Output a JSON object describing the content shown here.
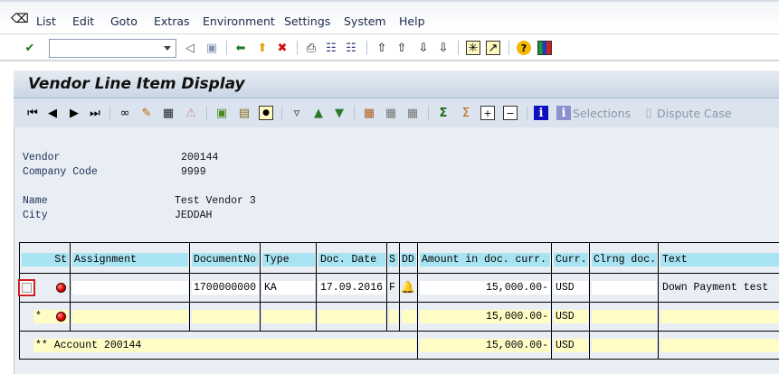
{
  "menu": [
    "List",
    "Edit",
    "Goto",
    "Extras",
    "Environment",
    "Settings",
    "System",
    "Help"
  ],
  "command_field": {
    "value": "",
    "placeholder": ""
  },
  "title": "Vendor Line Item Display",
  "app_toolbar": {
    "selections": "Selections",
    "dispute_case": "Dispute Case"
  },
  "header": {
    "vendor_label": "Vendor",
    "vendor": "200144",
    "company_code_label": "Company Code",
    "company_code": "9999",
    "name_label": "Name",
    "name": "Test Vendor 3",
    "city_label": "City",
    "city": "JEDDAH"
  },
  "table": {
    "columns": [
      "St",
      "Assignment",
      "DocumentNo",
      "Type",
      "Doc. Date",
      "S",
      "DD",
      "Amount in doc. curr.",
      "Curr.",
      "Clrng doc.",
      "Text"
    ],
    "rows": [
      {
        "assignment": "",
        "document_no": "1700000000",
        "type": "KA",
        "doc_date": "17.09.2016",
        "s": "F",
        "amount": "15,000.00-",
        "curr": "USD",
        "clrng_doc": "",
        "text": "Down Payment test",
        "status": "red"
      }
    ],
    "subtotal": {
      "marker": "*",
      "amount": "15,000.00-",
      "curr": "USD",
      "status": "red"
    },
    "total": {
      "label": "** Account 200144",
      "amount": "15,000.00-",
      "curr": "USD"
    }
  },
  "colors": {
    "header_band": "#a8e3f2",
    "total_band": "#fffcc6",
    "background": "#e9eef5"
  }
}
